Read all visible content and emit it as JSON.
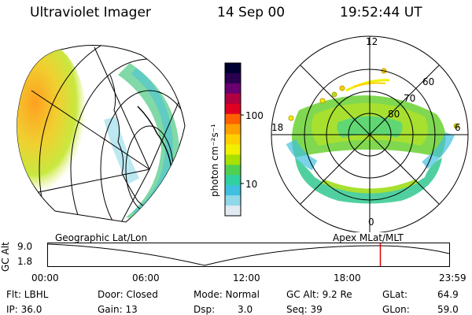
{
  "header": {
    "title": "Ultraviolet Imager",
    "date": "14 Sep 00",
    "time": "19:52:44 UT"
  },
  "colorbar": {
    "label": "photon cm⁻²s⁻¹",
    "ticks": [
      "100",
      "10"
    ],
    "colors": [
      "#000030",
      "#2a0050",
      "#6a0070",
      "#b00040",
      "#e00020",
      "#ff6000",
      "#ffa000",
      "#ffd000",
      "#f0f000",
      "#a8e000",
      "#50d050",
      "#30d0a0",
      "#40c0e0",
      "#90d8e8",
      "#e0eaf0"
    ]
  },
  "left_panel": {
    "caption": "Geographic Lat/Lon"
  },
  "right_panel": {
    "caption": "Apex MLat/MLT",
    "lat_labels": [
      "80",
      "70",
      "60"
    ],
    "mlt_labels": [
      "12",
      "18",
      "6",
      "0"
    ]
  },
  "altitude_plot": {
    "ylabel": "GC Alt",
    "yticks": [
      "9.0",
      "1.8"
    ],
    "xticks": [
      "00:00",
      "06:00",
      "12:00",
      "18:00",
      "23:59"
    ],
    "current_time_fraction": 0.8284
  },
  "info": {
    "flt": "Flt: LBHL",
    "ip": "IP: 36.0",
    "door": "Door: Closed",
    "gain": "Gain: 13",
    "mode": "Mode: Normal",
    "dsp_label": "Dsp:",
    "dsp_value": "3.0",
    "gcalt": "GC Alt: 9.2 Re",
    "seq": "Seq: 39",
    "glat_label": "GLat:",
    "glat_value": "64.9",
    "glon_label": "GLon:",
    "glon_value": "59.0"
  }
}
